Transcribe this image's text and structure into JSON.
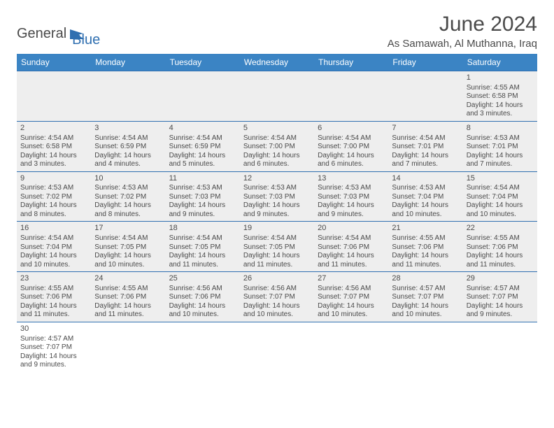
{
  "brand": {
    "general": "General",
    "blue": "Blue"
  },
  "title": "June 2024",
  "location": "As Samawah, Al Muthanna, Iraq",
  "colors": {
    "header_bg": "#3b84c4",
    "header_text": "#ffffff",
    "cell_bg": "#eeeeee",
    "border": "#2f6fb0",
    "text": "#4a4a4a",
    "brand_blue": "#2f6fb0"
  },
  "weekdays": [
    "Sunday",
    "Monday",
    "Tuesday",
    "Wednesday",
    "Thursday",
    "Friday",
    "Saturday"
  ],
  "weeks": [
    [
      null,
      null,
      null,
      null,
      null,
      null,
      {
        "n": "1",
        "sunrise": "Sunrise: 4:55 AM",
        "sunset": "Sunset: 6:58 PM",
        "day1": "Daylight: 14 hours",
        "day2": "and 3 minutes."
      }
    ],
    [
      {
        "n": "2",
        "sunrise": "Sunrise: 4:54 AM",
        "sunset": "Sunset: 6:58 PM",
        "day1": "Daylight: 14 hours",
        "day2": "and 3 minutes."
      },
      {
        "n": "3",
        "sunrise": "Sunrise: 4:54 AM",
        "sunset": "Sunset: 6:59 PM",
        "day1": "Daylight: 14 hours",
        "day2": "and 4 minutes."
      },
      {
        "n": "4",
        "sunrise": "Sunrise: 4:54 AM",
        "sunset": "Sunset: 6:59 PM",
        "day1": "Daylight: 14 hours",
        "day2": "and 5 minutes."
      },
      {
        "n": "5",
        "sunrise": "Sunrise: 4:54 AM",
        "sunset": "Sunset: 7:00 PM",
        "day1": "Daylight: 14 hours",
        "day2": "and 6 minutes."
      },
      {
        "n": "6",
        "sunrise": "Sunrise: 4:54 AM",
        "sunset": "Sunset: 7:00 PM",
        "day1": "Daylight: 14 hours",
        "day2": "and 6 minutes."
      },
      {
        "n": "7",
        "sunrise": "Sunrise: 4:54 AM",
        "sunset": "Sunset: 7:01 PM",
        "day1": "Daylight: 14 hours",
        "day2": "and 7 minutes."
      },
      {
        "n": "8",
        "sunrise": "Sunrise: 4:53 AM",
        "sunset": "Sunset: 7:01 PM",
        "day1": "Daylight: 14 hours",
        "day2": "and 7 minutes."
      }
    ],
    [
      {
        "n": "9",
        "sunrise": "Sunrise: 4:53 AM",
        "sunset": "Sunset: 7:02 PM",
        "day1": "Daylight: 14 hours",
        "day2": "and 8 minutes."
      },
      {
        "n": "10",
        "sunrise": "Sunrise: 4:53 AM",
        "sunset": "Sunset: 7:02 PM",
        "day1": "Daylight: 14 hours",
        "day2": "and 8 minutes."
      },
      {
        "n": "11",
        "sunrise": "Sunrise: 4:53 AM",
        "sunset": "Sunset: 7:03 PM",
        "day1": "Daylight: 14 hours",
        "day2": "and 9 minutes."
      },
      {
        "n": "12",
        "sunrise": "Sunrise: 4:53 AM",
        "sunset": "Sunset: 7:03 PM",
        "day1": "Daylight: 14 hours",
        "day2": "and 9 minutes."
      },
      {
        "n": "13",
        "sunrise": "Sunrise: 4:53 AM",
        "sunset": "Sunset: 7:03 PM",
        "day1": "Daylight: 14 hours",
        "day2": "and 9 minutes."
      },
      {
        "n": "14",
        "sunrise": "Sunrise: 4:53 AM",
        "sunset": "Sunset: 7:04 PM",
        "day1": "Daylight: 14 hours",
        "day2": "and 10 minutes."
      },
      {
        "n": "15",
        "sunrise": "Sunrise: 4:54 AM",
        "sunset": "Sunset: 7:04 PM",
        "day1": "Daylight: 14 hours",
        "day2": "and 10 minutes."
      }
    ],
    [
      {
        "n": "16",
        "sunrise": "Sunrise: 4:54 AM",
        "sunset": "Sunset: 7:04 PM",
        "day1": "Daylight: 14 hours",
        "day2": "and 10 minutes."
      },
      {
        "n": "17",
        "sunrise": "Sunrise: 4:54 AM",
        "sunset": "Sunset: 7:05 PM",
        "day1": "Daylight: 14 hours",
        "day2": "and 10 minutes."
      },
      {
        "n": "18",
        "sunrise": "Sunrise: 4:54 AM",
        "sunset": "Sunset: 7:05 PM",
        "day1": "Daylight: 14 hours",
        "day2": "and 11 minutes."
      },
      {
        "n": "19",
        "sunrise": "Sunrise: 4:54 AM",
        "sunset": "Sunset: 7:05 PM",
        "day1": "Daylight: 14 hours",
        "day2": "and 11 minutes."
      },
      {
        "n": "20",
        "sunrise": "Sunrise: 4:54 AM",
        "sunset": "Sunset: 7:06 PM",
        "day1": "Daylight: 14 hours",
        "day2": "and 11 minutes."
      },
      {
        "n": "21",
        "sunrise": "Sunrise: 4:55 AM",
        "sunset": "Sunset: 7:06 PM",
        "day1": "Daylight: 14 hours",
        "day2": "and 11 minutes."
      },
      {
        "n": "22",
        "sunrise": "Sunrise: 4:55 AM",
        "sunset": "Sunset: 7:06 PM",
        "day1": "Daylight: 14 hours",
        "day2": "and 11 minutes."
      }
    ],
    [
      {
        "n": "23",
        "sunrise": "Sunrise: 4:55 AM",
        "sunset": "Sunset: 7:06 PM",
        "day1": "Daylight: 14 hours",
        "day2": "and 11 minutes."
      },
      {
        "n": "24",
        "sunrise": "Sunrise: 4:55 AM",
        "sunset": "Sunset: 7:06 PM",
        "day1": "Daylight: 14 hours",
        "day2": "and 11 minutes."
      },
      {
        "n": "25",
        "sunrise": "Sunrise: 4:56 AM",
        "sunset": "Sunset: 7:06 PM",
        "day1": "Daylight: 14 hours",
        "day2": "and 10 minutes."
      },
      {
        "n": "26",
        "sunrise": "Sunrise: 4:56 AM",
        "sunset": "Sunset: 7:07 PM",
        "day1": "Daylight: 14 hours",
        "day2": "and 10 minutes."
      },
      {
        "n": "27",
        "sunrise": "Sunrise: 4:56 AM",
        "sunset": "Sunset: 7:07 PM",
        "day1": "Daylight: 14 hours",
        "day2": "and 10 minutes."
      },
      {
        "n": "28",
        "sunrise": "Sunrise: 4:57 AM",
        "sunset": "Sunset: 7:07 PM",
        "day1": "Daylight: 14 hours",
        "day2": "and 10 minutes."
      },
      {
        "n": "29",
        "sunrise": "Sunrise: 4:57 AM",
        "sunset": "Sunset: 7:07 PM",
        "day1": "Daylight: 14 hours",
        "day2": "and 9 minutes."
      }
    ],
    [
      {
        "n": "30",
        "sunrise": "Sunrise: 4:57 AM",
        "sunset": "Sunset: 7:07 PM",
        "day1": "Daylight: 14 hours",
        "day2": "and 9 minutes."
      },
      null,
      null,
      null,
      null,
      null,
      null
    ]
  ]
}
